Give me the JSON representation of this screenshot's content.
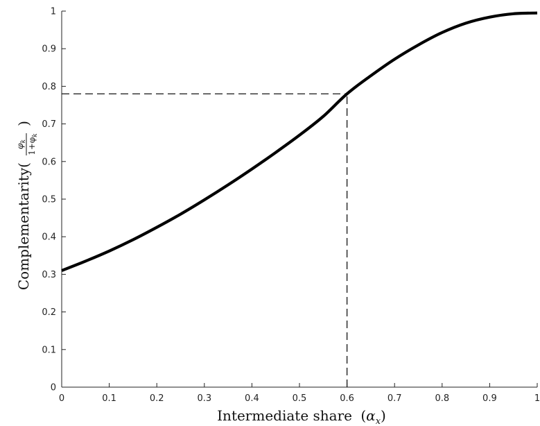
{
  "chart_data": {
    "type": "line",
    "xlabel": "Intermediate share",
    "xlabel_symbol": "α",
    "xlabel_subscript": "x",
    "ylabel": "Complementarity",
    "ylabel_num": "φ",
    "ylabel_num_sub": "k",
    "ylabel_den": "1+φ",
    "ylabel_den_sub": "k",
    "xlim": [
      0,
      1
    ],
    "ylim": [
      0,
      1
    ],
    "xticks": [
      "0",
      "0.1",
      "0.2",
      "0.3",
      "0.4",
      "0.5",
      "0.6",
      "0.7",
      "0.8",
      "0.9",
      "1"
    ],
    "yticks": [
      "0",
      "0.1",
      "0.2",
      "0.3",
      "0.4",
      "0.5",
      "0.6",
      "0.7",
      "0.8",
      "0.9",
      "1"
    ],
    "series": [
      {
        "x": [
          0,
          0.05,
          0.1,
          0.15,
          0.2,
          0.25,
          0.3,
          0.35,
          0.4,
          0.45,
          0.5,
          0.55,
          0.6,
          0.65,
          0.7,
          0.75,
          0.8,
          0.85,
          0.9,
          0.95,
          1
        ],
        "y": [
          0.31,
          0.335,
          0.362,
          0.392,
          0.425,
          0.46,
          0.498,
          0.538,
          0.58,
          0.624,
          0.67,
          0.72,
          0.78,
          0.828,
          0.872,
          0.91,
          0.943,
          0.968,
          0.984,
          0.993,
          0.995
        ],
        "color": "#000000"
      }
    ],
    "reference_lines": [
      {
        "type": "horizontal",
        "y": 0.78,
        "x_from": 0,
        "x_to": 0.6,
        "style": "dashed"
      },
      {
        "type": "vertical",
        "x": 0.6,
        "y_from": 0,
        "y_to": 0.78,
        "style": "dashed"
      }
    ],
    "grid": false,
    "legend": "none"
  }
}
